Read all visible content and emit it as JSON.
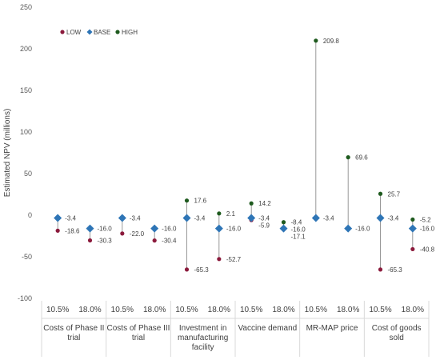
{
  "chart_data": {
    "type": "scatter",
    "title": "",
    "xlabel": "",
    "ylabel": "Estimated NPV (millions)",
    "ylim": [
      -100,
      250
    ],
    "yticks": [
      -100,
      -50,
      0,
      50,
      100,
      150,
      200,
      250
    ],
    "legend": {
      "placement": "top-left",
      "entries": [
        "LOW",
        "BASE",
        "HIGH"
      ]
    },
    "grid": false,
    "categories": [
      "Costs of Phase II trial",
      "Costs of Phase III trial",
      "Investment in manufacturing facility",
      "Vaccine demand",
      "MR-MAP price",
      "Cost of goods sold"
    ],
    "rates": [
      "10.5%",
      "18.0%"
    ],
    "series": [
      {
        "name": "LOW",
        "color": "#8b1a3c",
        "marker": "circle",
        "values": [
          -18.6,
          -30.3,
          -22.0,
          -30.4,
          -65.3,
          -52.7,
          -5.9,
          -17.1,
          -3.4,
          -16.0,
          -65.3,
          -40.8
        ]
      },
      {
        "name": "BASE",
        "color": "#2e75b6",
        "marker": "diamond",
        "values": [
          -3.4,
          -16.0,
          -3.4,
          -16.0,
          -3.4,
          -16.0,
          -3.4,
          -16.0,
          -3.4,
          -16.0,
          -3.4,
          -16.0
        ]
      },
      {
        "name": "HIGH",
        "color": "#1e5a1e",
        "marker": "circle",
        "values": [
          -3.4,
          -16.0,
          -3.4,
          -16.0,
          17.6,
          2.1,
          14.2,
          -8.4,
          209.8,
          69.6,
          25.7,
          -5.2
        ]
      }
    ],
    "point_labels": [
      [
        "-3.4",
        "-18.6"
      ],
      [
        "-16.0",
        "-30.3"
      ],
      [
        "-3.4",
        "-22.0"
      ],
      [
        "-16.0",
        "-30.4"
      ],
      [
        "17.6",
        "-3.4",
        "-65.3"
      ],
      [
        "2.1",
        "-16.0",
        "-52.7"
      ],
      [
        "14.2",
        "-3.4",
        "-5.9"
      ],
      [
        "-8.4",
        "-16.0",
        "-17.1"
      ],
      [
        "209.8",
        "-3.4"
      ],
      [
        "69.6",
        "-16.0"
      ],
      [
        "25.7",
        "-3.4",
        "-65.3"
      ],
      [
        "-5.2",
        "-16.0",
        "-40.8"
      ]
    ]
  },
  "category_labels": [
    {
      "lines": [
        "Costs of Phase II",
        "trial"
      ]
    },
    {
      "lines": [
        "Costs of Phase III",
        "trial"
      ]
    },
    {
      "lines": [
        "Investment in",
        "manufacturing",
        "facility"
      ]
    },
    {
      "lines": [
        "Vaccine demand"
      ]
    },
    {
      "lines": [
        "MR-MAP price"
      ]
    },
    {
      "lines": [
        "Cost of goods",
        "sold"
      ]
    }
  ]
}
